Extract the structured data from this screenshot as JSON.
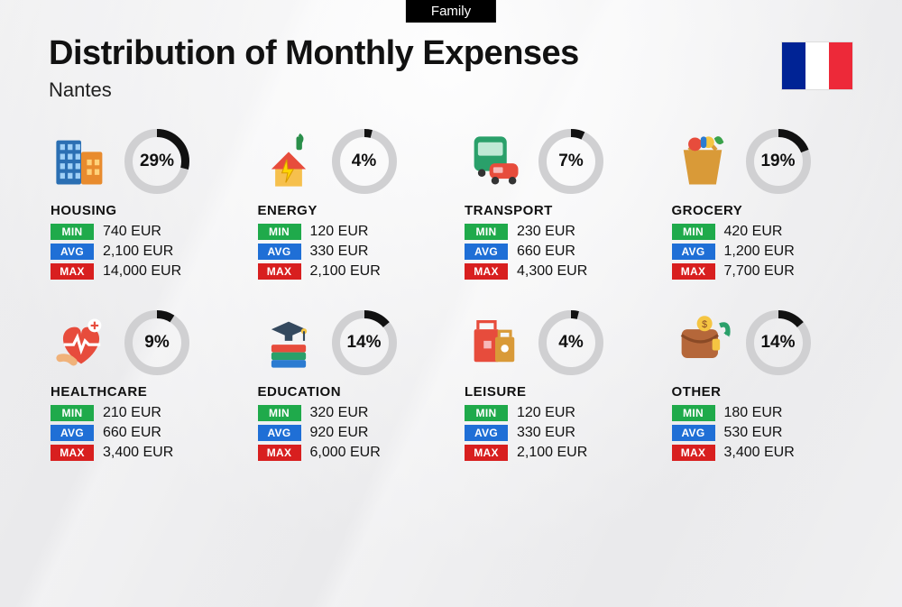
{
  "tag": "Family",
  "title": "Distribution of Monthly Expenses",
  "subtitle": "Nantes",
  "flag_colors": [
    "#002395",
    "#ffffff",
    "#ed2939"
  ],
  "labels": {
    "min": "MIN",
    "avg": "AVG",
    "max": "MAX"
  },
  "badge_colors": {
    "min": "#1faa4b",
    "avg": "#1f6fd6",
    "max": "#d81f1f"
  },
  "donut_style": {
    "size": 72,
    "stroke": 9,
    "track_color": "#d0d0d2",
    "fill_color": "#111111",
    "pct_fontsize": 19
  },
  "currency": "EUR",
  "categories": [
    {
      "key": "housing",
      "name": "HOUSING",
      "pct": 29,
      "min": "740 EUR",
      "avg": "2,100 EUR",
      "max": "14,000 EUR"
    },
    {
      "key": "energy",
      "name": "ENERGY",
      "pct": 4,
      "min": "120 EUR",
      "avg": "330 EUR",
      "max": "2,100 EUR"
    },
    {
      "key": "transport",
      "name": "TRANSPORT",
      "pct": 7,
      "min": "230 EUR",
      "avg": "660 EUR",
      "max": "4,300 EUR"
    },
    {
      "key": "grocery",
      "name": "GROCERY",
      "pct": 19,
      "min": "420 EUR",
      "avg": "1,200 EUR",
      "max": "7,700 EUR"
    },
    {
      "key": "healthcare",
      "name": "HEALTHCARE",
      "pct": 9,
      "min": "210 EUR",
      "avg": "660 EUR",
      "max": "3,400 EUR"
    },
    {
      "key": "education",
      "name": "EDUCATION",
      "pct": 14,
      "min": "320 EUR",
      "avg": "920 EUR",
      "max": "6,000 EUR"
    },
    {
      "key": "leisure",
      "name": "LEISURE",
      "pct": 4,
      "min": "120 EUR",
      "avg": "330 EUR",
      "max": "2,100 EUR"
    },
    {
      "key": "other",
      "name": "OTHER",
      "pct": 14,
      "min": "180 EUR",
      "avg": "530 EUR",
      "max": "3,400 EUR"
    }
  ]
}
